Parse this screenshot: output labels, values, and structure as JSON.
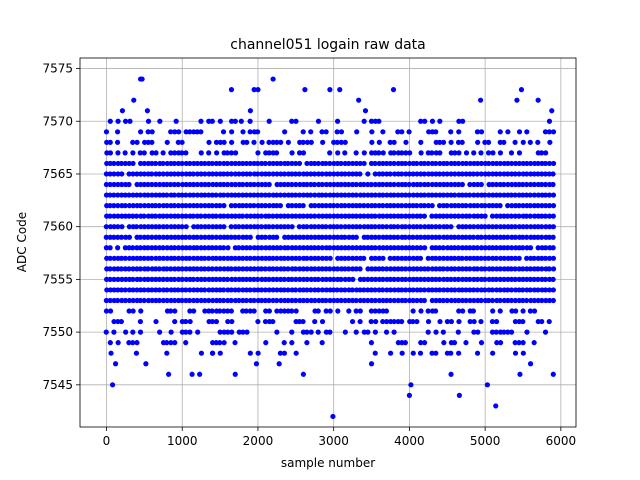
{
  "chart_data": {
    "type": "scatter",
    "title": "channel051 logain raw data",
    "xlabel": "sample number",
    "ylabel": "ADC Code",
    "xlim": [
      -350,
      6200
    ],
    "ylim": [
      7541,
      7576
    ],
    "xticks": [
      0,
      1000,
      2000,
      3000,
      4000,
      5000,
      6000
    ],
    "yticks": [
      7545,
      7550,
      7555,
      7560,
      7565,
      7570,
      7575
    ],
    "grid": true,
    "marker_color": "#0000ff",
    "x_range": [
      0,
      5900
    ],
    "x_step": 50,
    "dense_band": [
      7553,
      7566
    ],
    "outliers": [
      {
        "x": 80,
        "y": 7545
      },
      {
        "x": 60,
        "y": 7548
      },
      {
        "x": 120,
        "y": 7547
      },
      {
        "x": 450,
        "y": 7574
      },
      {
        "x": 470,
        "y": 7574
      },
      {
        "x": 360,
        "y": 7572
      },
      {
        "x": 210,
        "y": 7571
      },
      {
        "x": 540,
        "y": 7571
      },
      {
        "x": 310,
        "y": 7570
      },
      {
        "x": 520,
        "y": 7547
      },
      {
        "x": 820,
        "y": 7546
      },
      {
        "x": 1130,
        "y": 7546
      },
      {
        "x": 1230,
        "y": 7546
      },
      {
        "x": 1700,
        "y": 7546
      },
      {
        "x": 1980,
        "y": 7547
      },
      {
        "x": 1650,
        "y": 7573
      },
      {
        "x": 1950,
        "y": 7573
      },
      {
        "x": 2000,
        "y": 7573
      },
      {
        "x": 2200,
        "y": 7574
      },
      {
        "x": 2600,
        "y": 7546
      },
      {
        "x": 2620,
        "y": 7573
      },
      {
        "x": 2950,
        "y": 7573
      },
      {
        "x": 2990,
        "y": 7542
      },
      {
        "x": 3080,
        "y": 7573
      },
      {
        "x": 3500,
        "y": 7547
      },
      {
        "x": 3790,
        "y": 7573
      },
      {
        "x": 4000,
        "y": 7544
      },
      {
        "x": 4020,
        "y": 7545
      },
      {
        "x": 4660,
        "y": 7544
      },
      {
        "x": 4940,
        "y": 7572
      },
      {
        "x": 5030,
        "y": 7545
      },
      {
        "x": 5140,
        "y": 7543
      },
      {
        "x": 5420,
        "y": 7572
      },
      {
        "x": 5480,
        "y": 7573
      },
      {
        "x": 5700,
        "y": 7572
      },
      {
        "x": 5880,
        "y": 7571
      },
      {
        "x": 5900,
        "y": 7546
      },
      {
        "x": 3330,
        "y": 7572
      },
      {
        "x": 4550,
        "y": 7546
      },
      {
        "x": 4900,
        "y": 7548
      },
      {
        "x": 2280,
        "y": 7547
      },
      {
        "x": 1400,
        "y": 7548
      },
      {
        "x": 920,
        "y": 7570
      },
      {
        "x": 1900,
        "y": 7571
      },
      {
        "x": 1780,
        "y": 7570
      },
      {
        "x": 3420,
        "y": 7571
      },
      {
        "x": 5460,
        "y": 7546
      },
      {
        "x": 5600,
        "y": 7547
      }
    ]
  }
}
